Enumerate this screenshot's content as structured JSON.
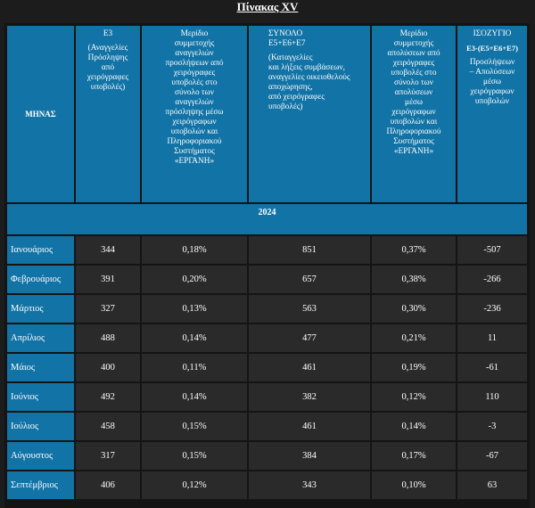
{
  "title": "Πίνακας XV",
  "headers": {
    "month": "ΜΗΝΑΣ",
    "e3": [
      "Ε3",
      "(Αναγγελίες",
      "Πρόσληψης",
      "από",
      "χειρόγραφες",
      "υποβολές)"
    ],
    "share_hires": [
      "Μερίδιο",
      "συμμετοχής",
      "αναγγελιών",
      "προσλήψεων από",
      "χειρόγραφες",
      "υποβολές στο",
      "σύνολο των",
      "αναγγελιών",
      "πρόσληψης μέσω",
      "χειρόγραφων",
      "υποβολών και",
      "Πληροφοριακού",
      "Συστήματος",
      "«ΕΡΓΑΝΗ»"
    ],
    "total": [
      "ΣΥΝΟΛΟ",
      "Ε5+Ε6+Ε7",
      "(Καταγγελίες",
      "και λήξεις συμβάσεων,",
      "αναγγελίες οικειοθελούς",
      "αποχώρησης,",
      "από χειρόγραφες",
      "υποβολές)"
    ],
    "share_exits": [
      "Μερίδιο",
      "συμμετοχής",
      "απολύσεων από",
      "χειρόγραφες",
      "υποβολές στο",
      "σύνολο των",
      "απολύσεων",
      "μέσω",
      "χειρόγραφων",
      "υποβολών και",
      "Πληροφοριακού",
      "Συστήματος",
      "«ΕΡΓΑΝΗ»"
    ],
    "balance_title": "ΙΣΟΖΥΓΙΟ",
    "balance_formula": "Ε3-(Ε5+Ε6+Ε7)",
    "balance_desc": [
      "Προσλήψεων",
      "– Απολύσεων",
      "μέσω",
      "χειρόγραφων",
      "υποβολών"
    ]
  },
  "year": "2024",
  "rows": [
    {
      "month": "Ιανουάριος",
      "e3": "344",
      "share_hires": "0,18%",
      "total": "851",
      "share_exits": "0,37%",
      "balance": "-507"
    },
    {
      "month": "Φεβρουάριος",
      "e3": "391",
      "share_hires": "0,20%",
      "total": "657",
      "share_exits": "0,38%",
      "balance": "-266"
    },
    {
      "month": "Μάρτιος",
      "e3": "327",
      "share_hires": "0,13%",
      "total": "563",
      "share_exits": "0,30%",
      "balance": "-236"
    },
    {
      "month": "Απρίλιος",
      "e3": "488",
      "share_hires": "0,14%",
      "total": "477",
      "share_exits": "0,21%",
      "balance": "11"
    },
    {
      "month": "Μάιος",
      "e3": "400",
      "share_hires": "0,11%",
      "total": "461",
      "share_exits": "0,19%",
      "balance": "-61"
    },
    {
      "month": "Ιούνιος",
      "e3": "492",
      "share_hires": "0,14%",
      "total": "382",
      "share_exits": "0,12%",
      "balance": "110"
    },
    {
      "month": "Ιούλιος",
      "e3": "458",
      "share_hires": "0,15%",
      "total": "461",
      "share_exits": "0,14%",
      "balance": "-3"
    },
    {
      "month": "Αύγουστος",
      "e3": "317",
      "share_hires": "0,15%",
      "total": "384",
      "share_exits": "0,17%",
      "balance": "-67"
    },
    {
      "month": "Σεπτέμβριος",
      "e3": "406",
      "share_hires": "0,12%",
      "total": "343",
      "share_exits": "0,10%",
      "balance": "63"
    }
  ],
  "colors": {
    "header_blue": "#1273a6",
    "data_cell": "#2a2a2a",
    "background": "#1c1c1c"
  }
}
